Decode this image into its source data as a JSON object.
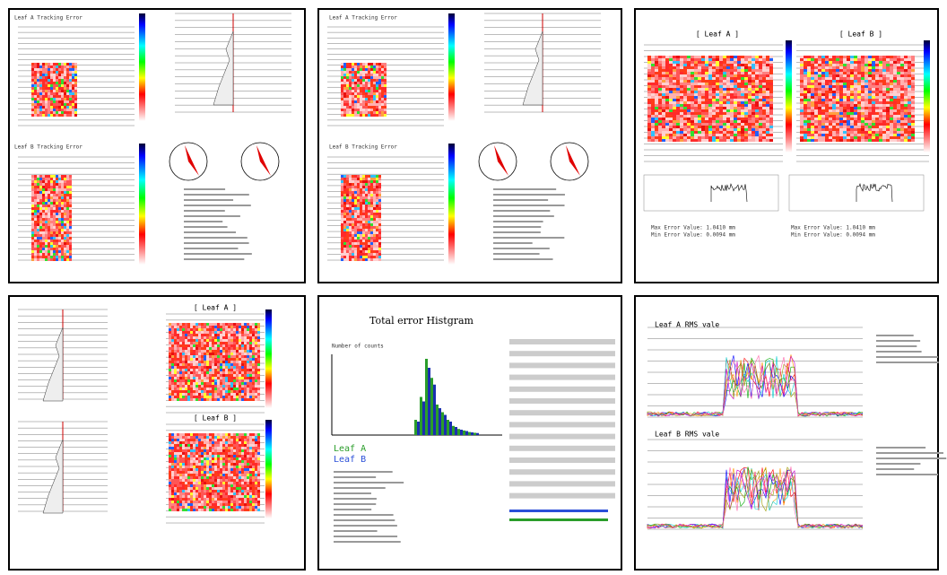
{
  "panels": [
    {
      "titles": [
        "Leaf A Tracking Error",
        "Leaf B Tracking Error"
      ]
    },
    {
      "titles": [
        "Leaf A Tracking Error",
        "Leaf B Tracking Error"
      ]
    },
    {
      "titles": [
        "[ Leaf A ]",
        "[ Leaf B ]"
      ],
      "notes": [
        "Max Error Value: 1.0410 mm",
        "Min Error Value: 0.0094 mm",
        "Max Error Value: 1.0410 mm",
        "Min Error Value: 0.0094 mm"
      ]
    },
    {
      "titles": [
        "[ Leaf A ]",
        "[ Leaf B ]"
      ]
    },
    {
      "titles": [
        "Total error Histgram",
        "Number of counts",
        "Leaf A",
        "Leaf B"
      ]
    },
    {
      "titles": [
        "Leaf A RMS vale",
        "Leaf B RMS vale"
      ]
    }
  ]
}
